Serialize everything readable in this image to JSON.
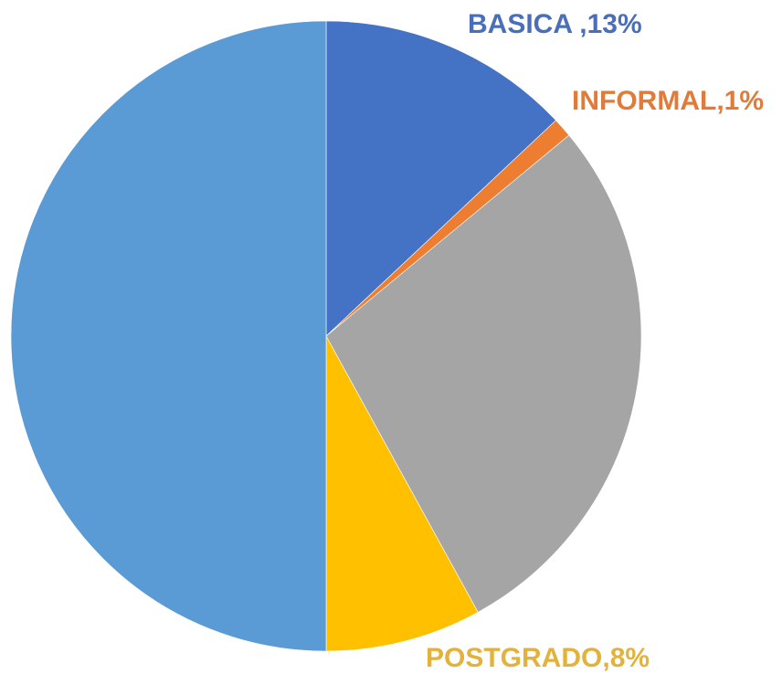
{
  "chart_data": {
    "type": "pie",
    "categories": [
      "BASICA ",
      "INFORMAL",
      null,
      "POSTGRADO",
      null
    ],
    "values": [
      13,
      1,
      28,
      8,
      50
    ],
    "value_labels": [
      ",13%",
      ",1%",
      null,
      ",8%",
      null
    ],
    "colors": [
      "#4472c4",
      "#ed7d31",
      "#a5a5a5",
      "#ffc000",
      "#5b9bd5"
    ],
    "start_angle": 0,
    "direction": "clockwise"
  }
}
